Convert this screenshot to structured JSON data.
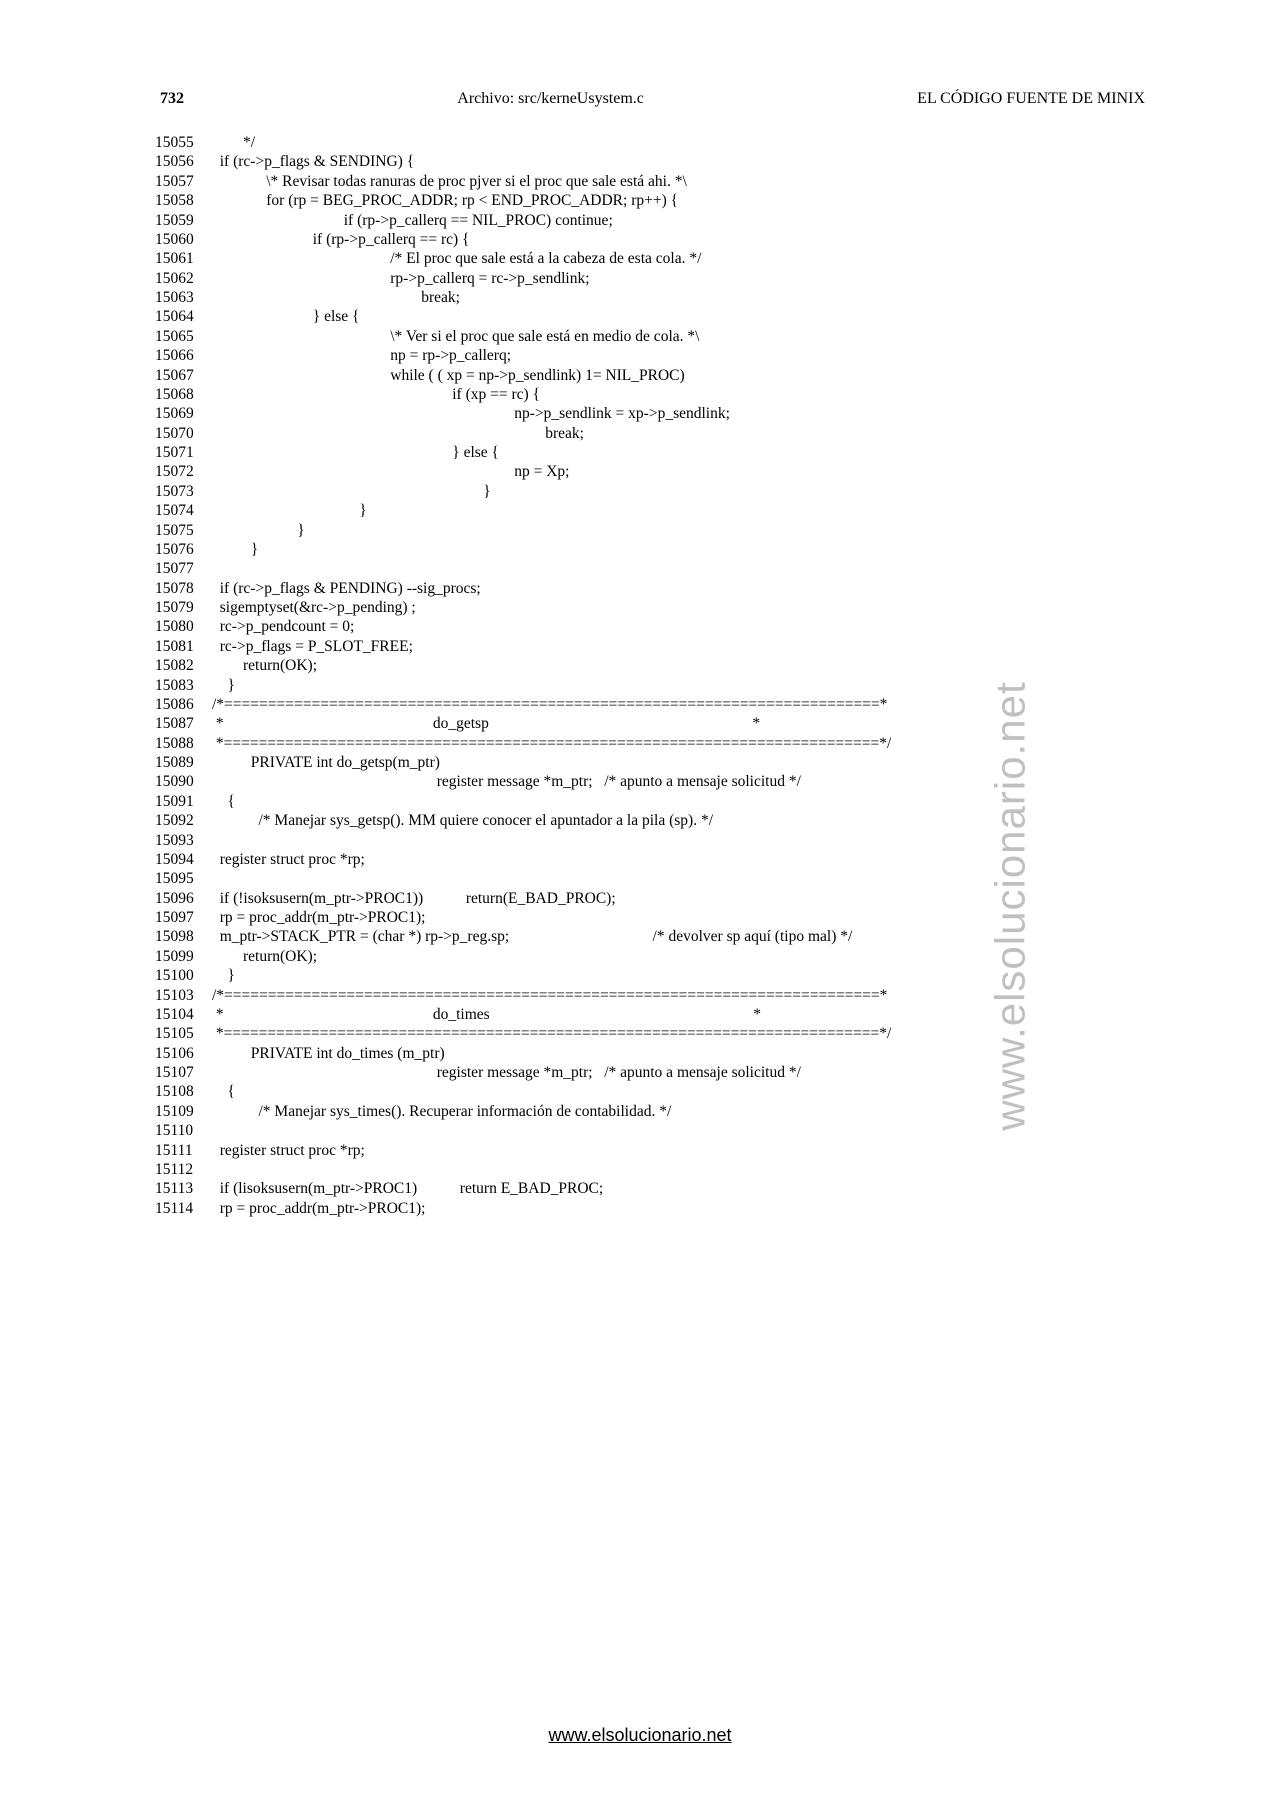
{
  "header": {
    "page_number": "732",
    "center_title": "Archivo: src/kerneUsystem.c",
    "right_title": "EL CÓDIGO FUENTE DE MINIX"
  },
  "watermark": "www.elsolucionario.net",
  "footer": "www.elsolucionario.net",
  "code_lines": [
    {
      "num": "15055",
      "text": "        */"
    },
    {
      "num": "15056",
      "text": "  if (rc->p_flags & SENDING) {"
    },
    {
      "num": "15057",
      "text": "              \\* Revisar todas ranuras de proc pjver si el proc que sale está ahi. *\\"
    },
    {
      "num": "15058",
      "text": "              for (rp = BEG_PROC_ADDR; rp < END_PROC_ADDR; rp++) {"
    },
    {
      "num": "15059",
      "text": "                                  if (rp->p_callerq == NIL_PROC) continue;"
    },
    {
      "num": "15060",
      "text": "                          if (rp->p_callerq == rc) {"
    },
    {
      "num": "15061",
      "text": "                                              /* El proc que sale está a la cabeza de esta cola. */"
    },
    {
      "num": "15062",
      "text": "                                              rp->p_callerq = rc->p_sendlink;"
    },
    {
      "num": "15063",
      "text": "                                                      break;"
    },
    {
      "num": "15064",
      "text": "                          } else {"
    },
    {
      "num": "15065",
      "text": "                                              \\* Ver si el proc que sale está en medio de cola. *\\"
    },
    {
      "num": "15066",
      "text": "                                              np = rp->p_callerq;"
    },
    {
      "num": "15067",
      "text": "                                              while ( ( xp = np->p_sendlink) 1= NIL_PROC)"
    },
    {
      "num": "15068",
      "text": "                                                              if (xp == rc) {"
    },
    {
      "num": "15069",
      "text": "                                                                              np->p_sendlink = xp->p_sendlink;"
    },
    {
      "num": "15070",
      "text": "                                                                                      break;"
    },
    {
      "num": "15071",
      "text": "                                                              } else {"
    },
    {
      "num": "15072",
      "text": "                                                                              np = Xp;"
    },
    {
      "num": "15073",
      "text": "                                                                      }"
    },
    {
      "num": "15074",
      "text": "                                      }"
    },
    {
      "num": "15075",
      "text": "                      }"
    },
    {
      "num": "15076",
      "text": "          }"
    },
    {
      "num": "15077",
      "text": ""
    },
    {
      "num": "15078",
      "text": "  if (rc->p_flags & PENDING) --sig_procs;"
    },
    {
      "num": "15079",
      "text": "  sigemptyset(&rc->p_pending) ;"
    },
    {
      "num": "15080",
      "text": "  rc->p_pendcount = 0;"
    },
    {
      "num": "15081",
      "text": "  rc->p_flags = P_SLOT_FREE;"
    },
    {
      "num": "15082",
      "text": "        return(OK);"
    },
    {
      "num": "15083",
      "text": "    }"
    },
    {
      "num": "",
      "text": ""
    },
    {
      "num": "15086",
      "text": "/*===========================================================================*"
    },
    {
      "num": "15087",
      "text": " *                                                      do_getsp                                                                    *"
    },
    {
      "num": "15088",
      "text": " *===========================================================================*/"
    },
    {
      "num": "15089",
      "text": "          PRIVATE int do_getsp(m_ptr)"
    },
    {
      "num": "15090",
      "text": "                                                          register message *m_ptr;   /* apunto a mensaje solicitud */"
    },
    {
      "num": "15091",
      "text": "    {"
    },
    {
      "num": "15092",
      "text": "            /* Manejar sys_getsp(). MM quiere conocer el apuntador a la pila (sp). */"
    },
    {
      "num": "15093",
      "text": ""
    },
    {
      "num": "15094",
      "text": "  register struct proc *rp;"
    },
    {
      "num": "15095",
      "text": ""
    },
    {
      "num": "15096",
      "text": "  if (!isoksusern(m_ptr->PROC1))           return(E_BAD_PROC);"
    },
    {
      "num": "15097",
      "text": "  rp = proc_addr(m_ptr->PROC1);"
    },
    {
      "num": "15098",
      "text": "  m_ptr->STACK_PTR = (char *) rp->p_reg.sp;                                     /* devolver sp aquí (tipo mal) */"
    },
    {
      "num": "15099",
      "text": "        return(OK);"
    },
    {
      "num": "15100",
      "text": "    }"
    },
    {
      "num": "",
      "text": ""
    },
    {
      "num": "15103",
      "text": "/*===========================================================================*"
    },
    {
      "num": "15104",
      "text": " *                                                      do_times                                                                    *"
    },
    {
      "num": "15105",
      "text": " *===========================================================================*/"
    },
    {
      "num": "15106",
      "text": "          PRIVATE int do_times (m_ptr)"
    },
    {
      "num": "15107",
      "text": "                                                          register message *m_ptr;   /* apunto a mensaje solicitud */"
    },
    {
      "num": "15108",
      "text": "    {"
    },
    {
      "num": "15109",
      "text": "            /* Manejar sys_times(). Recuperar información de contabilidad. */"
    },
    {
      "num": "15110",
      "text": ""
    },
    {
      "num": "15111",
      "text": "  register struct proc *rp;"
    },
    {
      "num": "15112",
      "text": ""
    },
    {
      "num": "15113",
      "text": "  if (lisoksusern(m_ptr->PROC1)           return E_BAD_PROC;"
    },
    {
      "num": "15114",
      "text": "  rp = proc_addr(m_ptr->PROC1);"
    }
  ]
}
